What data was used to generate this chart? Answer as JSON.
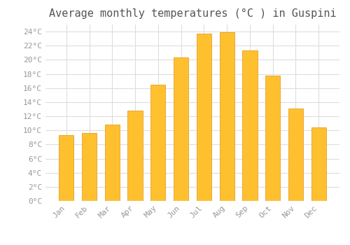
{
  "title": "Average monthly temperatures (°C ) in Guspini",
  "months": [
    "Jan",
    "Feb",
    "Mar",
    "Apr",
    "May",
    "Jun",
    "Jul",
    "Aug",
    "Sep",
    "Oct",
    "Nov",
    "Dec"
  ],
  "values": [
    9.3,
    9.6,
    10.8,
    12.8,
    16.5,
    20.3,
    23.7,
    23.9,
    21.3,
    17.8,
    13.1,
    10.4
  ],
  "bar_color": "#FFC030",
  "bar_edge_color": "#E8A020",
  "background_color": "#FFFFFF",
  "plot_bg_color": "#FFFFFF",
  "grid_color": "#DDDDDD",
  "ylim": [
    0,
    25
  ],
  "yticks": [
    0,
    2,
    4,
    6,
    8,
    10,
    12,
    14,
    16,
    18,
    20,
    22,
    24
  ],
  "title_fontsize": 11,
  "tick_fontsize": 8,
  "tick_label_color": "#999999",
  "title_color": "#555555",
  "bar_width": 0.65
}
